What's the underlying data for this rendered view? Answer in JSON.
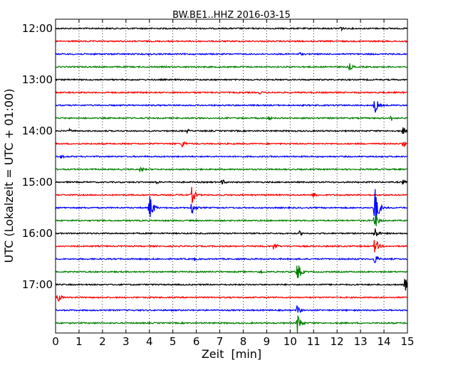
{
  "chart_data": {
    "type": "line",
    "title": "BW.BE1..HHZ 2016-03-15",
    "xlabel": "Zeit  [min]",
    "ylabel": "UTC (Lokalzeit = UTC + 01:00)",
    "xlim": [
      0,
      15
    ],
    "x_ticks": [
      "0",
      "1",
      "2",
      "3",
      "4",
      "5",
      "6",
      "7",
      "8",
      "9",
      "10",
      "11",
      "12",
      "13",
      "14",
      "15"
    ],
    "y_ticks": [
      "12:00",
      "13:00",
      "14:00",
      "15:00",
      "16:00",
      "17:00"
    ],
    "trace_interval_min": 15,
    "grid": "vertical dotted",
    "color_cycle": [
      "#000000",
      "#ff0000",
      "#0000ff",
      "#008000"
    ],
    "series": [
      {
        "start": "12:00",
        "events": [
          {
            "t": 12.1,
            "amp": 6
          }
        ]
      },
      {
        "start": "12:15",
        "events": []
      },
      {
        "start": "12:30",
        "events": [
          {
            "t": 4.0,
            "amp": 3
          },
          {
            "t": 10.4,
            "amp": 3
          }
        ]
      },
      {
        "start": "12:45",
        "events": [
          {
            "t": 12.5,
            "amp": 7
          }
        ]
      },
      {
        "start": "13:00",
        "events": []
      },
      {
        "start": "13:15",
        "events": [
          {
            "t": 8.7,
            "amp": 3
          }
        ]
      },
      {
        "start": "13:30",
        "events": [
          {
            "t": 13.6,
            "amp": 14
          },
          {
            "t": 12.0,
            "amp": 3
          }
        ]
      },
      {
        "start": "13:45",
        "events": [
          {
            "t": 14.3,
            "amp": 5
          },
          {
            "t": 9.1,
            "amp": 3
          }
        ]
      },
      {
        "start": "14:00",
        "events": [
          {
            "t": 14.8,
            "amp": 6
          },
          {
            "t": 0.6,
            "amp": 3
          },
          {
            "t": 5.6,
            "amp": 3
          }
        ]
      },
      {
        "start": "14:15",
        "events": [
          {
            "t": 5.4,
            "amp": 6
          },
          {
            "t": 14.8,
            "amp": 6
          }
        ]
      },
      {
        "start": "14:30",
        "events": [
          {
            "t": 0.2,
            "amp": 4
          }
        ]
      },
      {
        "start": "14:45",
        "events": [
          {
            "t": 3.6,
            "amp": 5
          }
        ]
      },
      {
        "start": "15:00",
        "events": [
          {
            "t": 7.1,
            "amp": 5
          },
          {
            "t": 14.8,
            "amp": 4
          },
          {
            "t": 4.3,
            "amp": 3
          }
        ]
      },
      {
        "start": "15:15",
        "events": [
          {
            "t": 5.8,
            "amp": 14
          },
          {
            "t": 11.0,
            "amp": 5
          }
        ]
      },
      {
        "start": "15:30",
        "events": [
          {
            "t": 4.0,
            "amp": 22
          },
          {
            "t": 5.8,
            "amp": 12
          },
          {
            "t": 13.6,
            "amp": 34
          }
        ]
      },
      {
        "start": "15:45",
        "events": [
          {
            "t": 13.6,
            "amp": 14
          }
        ]
      },
      {
        "start": "16:00",
        "events": [
          {
            "t": 10.4,
            "amp": 4
          },
          {
            "t": 13.6,
            "amp": 10
          }
        ]
      },
      {
        "start": "16:15",
        "events": [
          {
            "t": 9.3,
            "amp": 7
          },
          {
            "t": 13.6,
            "amp": 14
          }
        ]
      },
      {
        "start": "16:30",
        "events": [
          {
            "t": 5.9,
            "amp": 3
          },
          {
            "t": 13.6,
            "amp": 8
          }
        ]
      },
      {
        "start": "16:45",
        "events": [
          {
            "t": 10.3,
            "amp": 16
          },
          {
            "t": 8.7,
            "amp": 4
          }
        ]
      },
      {
        "start": "17:00",
        "events": [
          {
            "t": 14.9,
            "amp": 11
          }
        ]
      },
      {
        "start": "17:15",
        "events": [
          {
            "t": 0.1,
            "amp": 7
          }
        ]
      },
      {
        "start": "17:30",
        "events": [
          {
            "t": 10.3,
            "amp": 8
          }
        ]
      },
      {
        "start": "17:45",
        "events": [
          {
            "t": 10.3,
            "amp": 16
          }
        ]
      }
    ]
  }
}
